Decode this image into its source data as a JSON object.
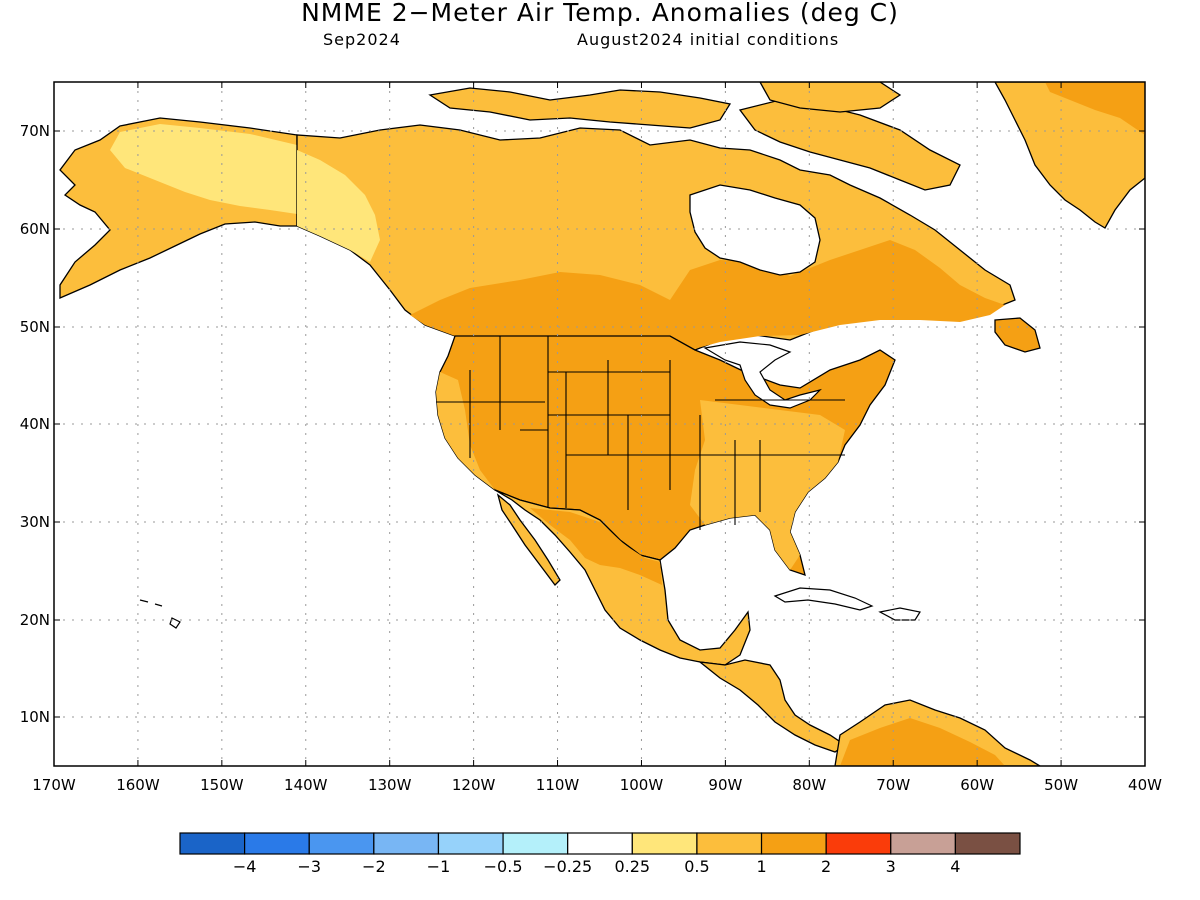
{
  "title": "NMME 2−Meter Air Temp. Anomalies (deg C)",
  "subtitle_left": "Sep2024",
  "subtitle_right": "August2024 initial conditions",
  "lat_labels": [
    "70N",
    "60N",
    "50N",
    "40N",
    "30N",
    "20N",
    "10N"
  ],
  "lon_labels": [
    "170W",
    "160W",
    "150W",
    "140W",
    "130W",
    "120W",
    "110W",
    "100W",
    "90W",
    "80W",
    "70W",
    "60W",
    "50W",
    "40W"
  ],
  "colorbar": {
    "colors": [
      "#1a64c8",
      "#2a7ae8",
      "#4a96f0",
      "#78b6f4",
      "#96d2fa",
      "#b4f0fa",
      "#ffffff",
      "#ffe67a",
      "#fcbe3c",
      "#f5a014",
      "#fa3c0a",
      "#c8a096",
      "#7a5043"
    ],
    "labels": [
      "−4",
      "−3",
      "−2",
      "−1",
      "−0.5",
      "−0.25",
      "0.25",
      "0.5",
      "1",
      "2",
      "3",
      "4"
    ]
  },
  "map_colors": {
    "ocean": "#ffffff",
    "anom_025_05": "#ffe67a",
    "anom_05_1": "#fcbe3c",
    "anom_1_2": "#f5a014",
    "grid": "#a0a0a0"
  }
}
